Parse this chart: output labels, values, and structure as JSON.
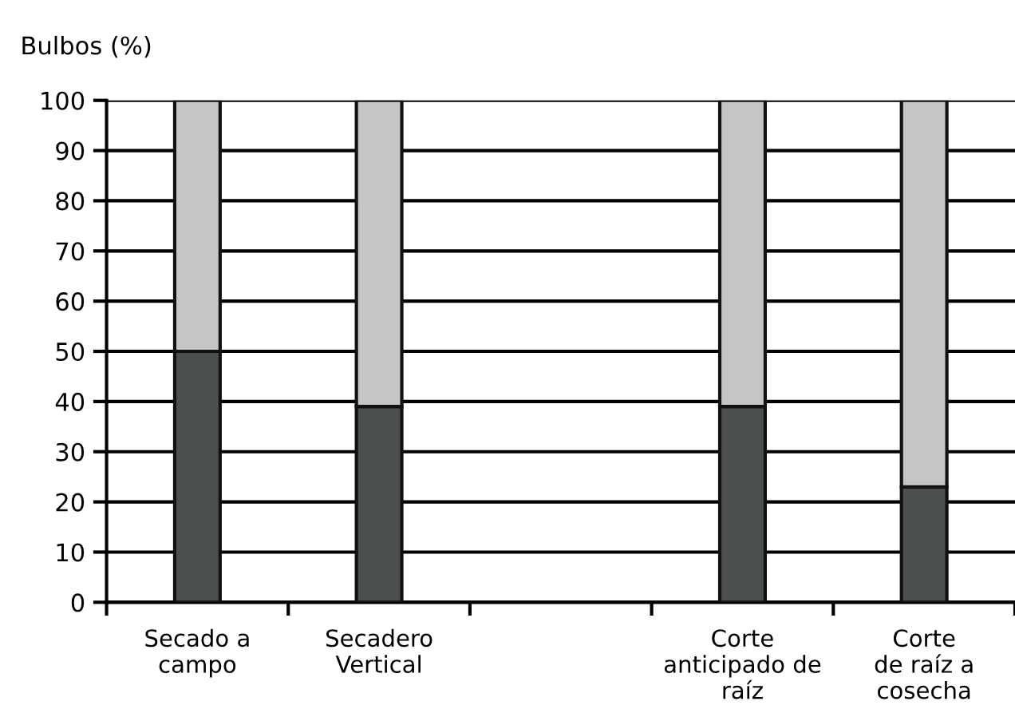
{
  "chart_data": {
    "type": "bar",
    "ylabel": "Bulbos (%)",
    "stacked": true,
    "categories": [
      "Secado a\ncampo",
      "Secadero\nVertical",
      null,
      "Corte\nanticipado de\nraíz",
      "Corte\nde raíz a\ncosecha"
    ],
    "series": [
      {
        "color": "#4b504c",
        "values": [
          50,
          39,
          null,
          39,
          23
        ]
      },
      {
        "color": "#c4c6c3",
        "values": [
          50,
          61,
          null,
          61,
          77
        ]
      }
    ],
    "ylim": [
      0,
      100
    ],
    "yticks": [
      0,
      10,
      20,
      30,
      40,
      50,
      60,
      70,
      80,
      90,
      100
    ],
    "grid": "y"
  }
}
